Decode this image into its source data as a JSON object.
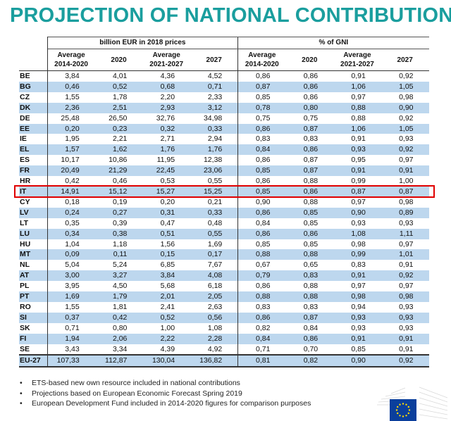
{
  "title": "PROJECTION OF NATIONAL CONTRIBUTIONS",
  "table": {
    "group_headers": [
      "billion EUR in 2018 prices",
      "% of GNI"
    ],
    "sub_headers": [
      {
        "line1": "Average",
        "line2": "2014-2020"
      },
      {
        "line1": "2020",
        "line2": ""
      },
      {
        "line1": "Average",
        "line2": "2021-2027"
      },
      {
        "line1": "2027",
        "line2": ""
      },
      {
        "line1": "Average",
        "line2": "2014-2020"
      },
      {
        "line1": "2020",
        "line2": ""
      },
      {
        "line1": "Average",
        "line2": "2021-2027"
      },
      {
        "line1": "2027",
        "line2": ""
      }
    ],
    "highlighted_row": "IT",
    "rows": [
      {
        "c": "BE",
        "v": [
          "3,84",
          "4,01",
          "4,36",
          "4,52",
          "0,86",
          "0,86",
          "0,91",
          "0,92"
        ]
      },
      {
        "c": "BG",
        "v": [
          "0,46",
          "0,52",
          "0,68",
          "0,71",
          "0,87",
          "0,86",
          "1,06",
          "1,05"
        ]
      },
      {
        "c": "CZ",
        "v": [
          "1,55",
          "1,78",
          "2,20",
          "2,33",
          "0,85",
          "0,86",
          "0,97",
          "0,98"
        ]
      },
      {
        "c": "DK",
        "v": [
          "2,36",
          "2,51",
          "2,93",
          "3,12",
          "0,78",
          "0,80",
          "0,88",
          "0,90"
        ]
      },
      {
        "c": "DE",
        "v": [
          "25,48",
          "26,50",
          "32,76",
          "34,98",
          "0,75",
          "0,75",
          "0,88",
          "0,92"
        ]
      },
      {
        "c": "EE",
        "v": [
          "0,20",
          "0,23",
          "0,32",
          "0,33",
          "0,86",
          "0,87",
          "1,06",
          "1,05"
        ]
      },
      {
        "c": "IE",
        "v": [
          "1,95",
          "2,21",
          "2,71",
          "2,94",
          "0,83",
          "0,83",
          "0,91",
          "0,93"
        ]
      },
      {
        "c": "EL",
        "v": [
          "1,57",
          "1,62",
          "1,76",
          "1,76",
          "0,84",
          "0,86",
          "0,93",
          "0,92"
        ]
      },
      {
        "c": "ES",
        "v": [
          "10,17",
          "10,86",
          "11,95",
          "12,38",
          "0,86",
          "0,87",
          "0,95",
          "0,97"
        ]
      },
      {
        "c": "FR",
        "v": [
          "20,49",
          "21,29",
          "22,45",
          "23,06",
          "0,85",
          "0,87",
          "0,91",
          "0,91"
        ]
      },
      {
        "c": "HR",
        "v": [
          "0,42",
          "0,46",
          "0,53",
          "0,55",
          "0,86",
          "0,88",
          "0,99",
          "1,00"
        ]
      },
      {
        "c": "IT",
        "v": [
          "14,91",
          "15,12",
          "15,27",
          "15,25",
          "0,85",
          "0,86",
          "0,87",
          "0,87"
        ]
      },
      {
        "c": "CY",
        "v": [
          "0,18",
          "0,19",
          "0,20",
          "0,21",
          "0,90",
          "0,88",
          "0,97",
          "0,98"
        ]
      },
      {
        "c": "LV",
        "v": [
          "0,24",
          "0,27",
          "0,31",
          "0,33",
          "0,86",
          "0,85",
          "0,90",
          "0,89"
        ]
      },
      {
        "c": "LT",
        "v": [
          "0,35",
          "0,39",
          "0,47",
          "0,48",
          "0,84",
          "0,85",
          "0,93",
          "0,93"
        ]
      },
      {
        "c": "LU",
        "v": [
          "0,34",
          "0,38",
          "0,51",
          "0,55",
          "0,86",
          "0,86",
          "1,08",
          "1,11"
        ]
      },
      {
        "c": "HU",
        "v": [
          "1,04",
          "1,18",
          "1,56",
          "1,69",
          "0,85",
          "0,85",
          "0,98",
          "0,97"
        ]
      },
      {
        "c": "MT",
        "v": [
          "0,09",
          "0,11",
          "0,15",
          "0,17",
          "0,88",
          "0,88",
          "0,99",
          "1,01"
        ]
      },
      {
        "c": "NL",
        "v": [
          "5,04",
          "5,24",
          "6,85",
          "7,67",
          "0,67",
          "0,65",
          "0,83",
          "0,91"
        ]
      },
      {
        "c": "AT",
        "v": [
          "3,00",
          "3,27",
          "3,84",
          "4,08",
          "0,79",
          "0,83",
          "0,91",
          "0,92"
        ]
      },
      {
        "c": "PL",
        "v": [
          "3,95",
          "4,50",
          "5,68",
          "6,18",
          "0,86",
          "0,88",
          "0,97",
          "0,97"
        ]
      },
      {
        "c": "PT",
        "v": [
          "1,69",
          "1,79",
          "2,01",
          "2,05",
          "0,88",
          "0,88",
          "0,98",
          "0,98"
        ]
      },
      {
        "c": "RO",
        "v": [
          "1,55",
          "1,81",
          "2,41",
          "2,63",
          "0,83",
          "0,83",
          "0,94",
          "0,93"
        ]
      },
      {
        "c": "SI",
        "v": [
          "0,37",
          "0,42",
          "0,52",
          "0,56",
          "0,86",
          "0,87",
          "0,93",
          "0,93"
        ]
      },
      {
        "c": "SK",
        "v": [
          "0,71",
          "0,80",
          "1,00",
          "1,08",
          "0,82",
          "0,84",
          "0,93",
          "0,93"
        ]
      },
      {
        "c": "FI",
        "v": [
          "1,94",
          "2,06",
          "2,22",
          "2,28",
          "0,84",
          "0,86",
          "0,91",
          "0,91"
        ]
      },
      {
        "c": "SE",
        "v": [
          "3,43",
          "3,34",
          "4,39",
          "4,92",
          "0,71",
          "0,70",
          "0,85",
          "0,91"
        ]
      }
    ],
    "total": {
      "c": "EU-27",
      "v": [
        "107,33",
        "112,87",
        "130,04",
        "136,82",
        "0,81",
        "0,82",
        "0,90",
        "0,92"
      ]
    }
  },
  "notes": [
    "ETS-based new own resource included in national contributions",
    "Projections based on European Economic Forecast Spring 2019",
    "European Development Fund included in 2014-2020 figures for comparison purposes"
  ],
  "colors": {
    "title": "#1a9e9e",
    "stripe": "#bdd7ee",
    "highlight": "#e00000",
    "flag": "#0b3f9c",
    "stars": "#ffdd00"
  }
}
